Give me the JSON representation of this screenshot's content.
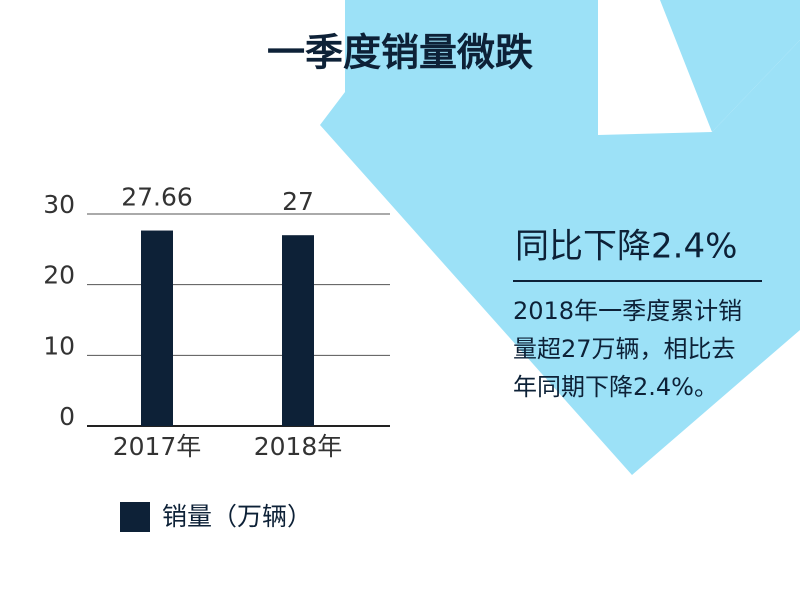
{
  "chart_data": {
    "type": "bar",
    "title": "一季度销量微跌",
    "categories": [
      "2017年",
      "2018年"
    ],
    "series": [
      {
        "name": "销量（万辆）",
        "color": "#0d2137",
        "values": [
          27.66,
          27
        ]
      }
    ],
    "ylim": [
      0,
      30
    ],
    "yticks": [
      0,
      10,
      20,
      30
    ],
    "grid": true,
    "annotations": [
      "同比下降2.4%",
      "2018年一季度累计销量超27万辆，相比去年同期下降2.4%。"
    ]
  }
}
